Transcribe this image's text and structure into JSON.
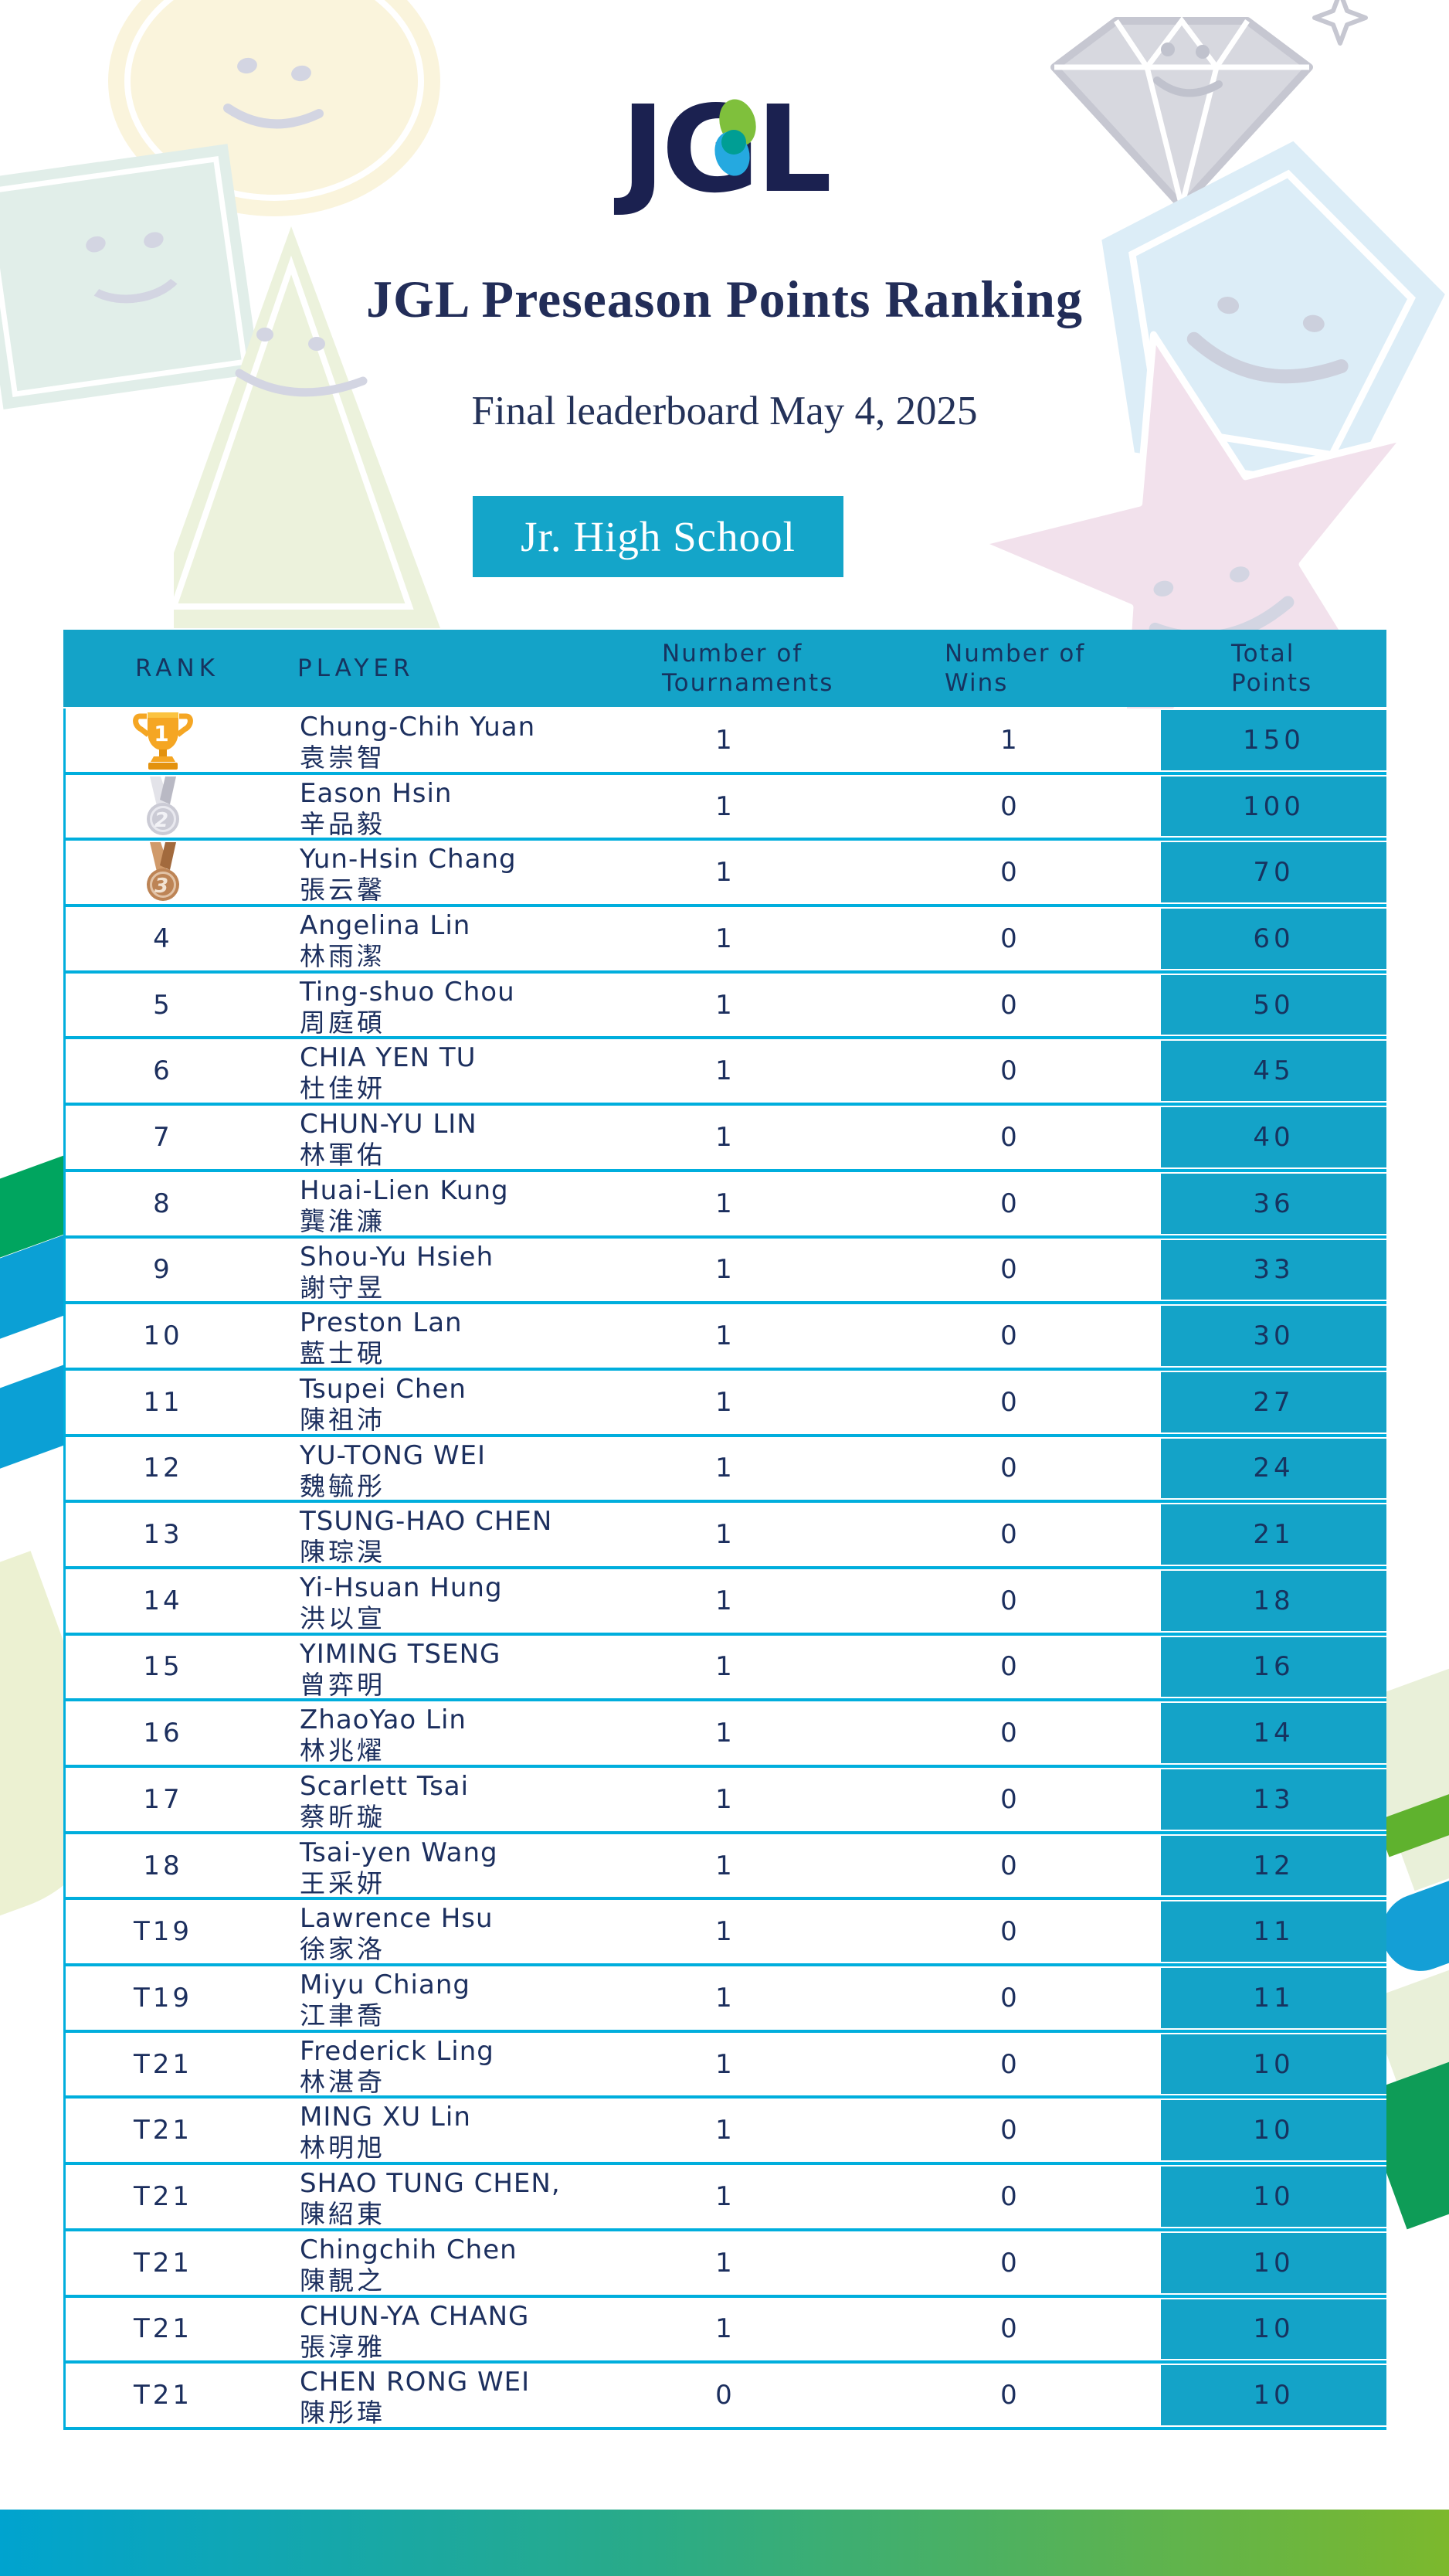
{
  "logo": {
    "text": "JGL"
  },
  "header": {
    "title": "JGL Preseason Points Ranking",
    "subtitle": "Final leaderboard May 4, 2025",
    "division_label": "Jr. High School"
  },
  "table": {
    "columns": [
      {
        "id": "rank",
        "lines": [
          "RANK"
        ]
      },
      {
        "id": "player",
        "lines": [
          "PLAYER"
        ]
      },
      {
        "id": "tournaments",
        "lines": [
          "Number of",
          "Tournaments"
        ]
      },
      {
        "id": "wins",
        "lines": [
          "Number of",
          "Wins"
        ]
      },
      {
        "id": "points",
        "lines": [
          "Total",
          "Points"
        ]
      }
    ],
    "rows": [
      {
        "rank": "1",
        "medal": "gold-trophy",
        "name_en": "Chung-Chih Yuan",
        "name_zh": "袁崇智",
        "tournaments": "1",
        "wins": "1",
        "points": "150"
      },
      {
        "rank": "2",
        "medal": "silver-medal",
        "name_en": "Eason Hsin",
        "name_zh": "辛品毅",
        "tournaments": "1",
        "wins": "0",
        "points": "100"
      },
      {
        "rank": "3",
        "medal": "bronze-medal",
        "name_en": "Yun-Hsin Chang",
        "name_zh": "張云馨",
        "tournaments": "1",
        "wins": "0",
        "points": "70"
      },
      {
        "rank": "4",
        "medal": null,
        "name_en": "Angelina Lin",
        "name_zh": "林雨潔",
        "tournaments": "1",
        "wins": "0",
        "points": "60"
      },
      {
        "rank": "5",
        "medal": null,
        "name_en": "Ting-shuo Chou",
        "name_zh": "周庭碩",
        "tournaments": "1",
        "wins": "0",
        "points": "50"
      },
      {
        "rank": "6",
        "medal": null,
        "name_en": "CHIA YEN TU",
        "name_zh": "杜佳妍",
        "tournaments": "1",
        "wins": "0",
        "points": "45"
      },
      {
        "rank": "7",
        "medal": null,
        "name_en": "CHUN-YU LIN",
        "name_zh": "林軍佑",
        "tournaments": "1",
        "wins": "0",
        "points": "40"
      },
      {
        "rank": "8",
        "medal": null,
        "name_en": "Huai-Lien Kung",
        "name_zh": "龔淮濂",
        "tournaments": "1",
        "wins": "0",
        "points": "36"
      },
      {
        "rank": "9",
        "medal": null,
        "name_en": "Shou-Yu Hsieh",
        "name_zh": "謝守昱",
        "tournaments": "1",
        "wins": "0",
        "points": "33"
      },
      {
        "rank": "10",
        "medal": null,
        "name_en": "Preston Lan",
        "name_zh": "藍士硯",
        "tournaments": "1",
        "wins": "0",
        "points": "30"
      },
      {
        "rank": "11",
        "medal": null,
        "name_en": "Tsupei Chen",
        "name_zh": "陳祖沛",
        "tournaments": "1",
        "wins": "0",
        "points": "27"
      },
      {
        "rank": "12",
        "medal": null,
        "name_en": "YU-TONG WEI",
        "name_zh": "魏毓彤",
        "tournaments": "1",
        "wins": "0",
        "points": "24"
      },
      {
        "rank": "13",
        "medal": null,
        "name_en": "TSUNG-HAO CHEN",
        "name_zh": "陳琮淏",
        "tournaments": "1",
        "wins": "0",
        "points": "21"
      },
      {
        "rank": "14",
        "medal": null,
        "name_en": "Yi-Hsuan Hung",
        "name_zh": "洪以宣",
        "tournaments": "1",
        "wins": "0",
        "points": "18"
      },
      {
        "rank": "15",
        "medal": null,
        "name_en": "YIMING TSENG",
        "name_zh": "曾弈明",
        "tournaments": "1",
        "wins": "0",
        "points": "16"
      },
      {
        "rank": "16",
        "medal": null,
        "name_en": "ZhaoYao Lin",
        "name_zh": "林兆燿",
        "tournaments": "1",
        "wins": "0",
        "points": "14"
      },
      {
        "rank": "17",
        "medal": null,
        "name_en": "Scarlett Tsai",
        "name_zh": "蔡昕璇",
        "tournaments": "1",
        "wins": "0",
        "points": "13"
      },
      {
        "rank": "18",
        "medal": null,
        "name_en": "Tsai-yen Wang",
        "name_zh": "王采妍",
        "tournaments": "1",
        "wins": "0",
        "points": "12"
      },
      {
        "rank": "T19",
        "medal": null,
        "name_en": "Lawrence Hsu",
        "name_zh": "徐家洛",
        "tournaments": "1",
        "wins": "0",
        "points": "11"
      },
      {
        "rank": "T19",
        "medal": null,
        "name_en": "Miyu Chiang",
        "name_zh": "江聿喬",
        "tournaments": "1",
        "wins": "0",
        "points": "11"
      },
      {
        "rank": "T21",
        "medal": null,
        "name_en": "Frederick Ling",
        "name_zh": "林湛奇",
        "tournaments": "1",
        "wins": "0",
        "points": "10"
      },
      {
        "rank": "T21",
        "medal": null,
        "name_en": "MING XU Lin",
        "name_zh": "林明旭",
        "tournaments": "1",
        "wins": "0",
        "points": "10"
      },
      {
        "rank": "T21",
        "medal": null,
        "name_en": "SHAO TUNG CHEN,",
        "name_zh": "陳紹東",
        "tournaments": "1",
        "wins": "0",
        "points": "10"
      },
      {
        "rank": "T21",
        "medal": null,
        "name_en": "Chingchih Chen",
        "name_zh": "陳靚之",
        "tournaments": "1",
        "wins": "0",
        "points": "10"
      },
      {
        "rank": "T21",
        "medal": null,
        "name_en": "CHUN-YA CHANG",
        "name_zh": "張淳雅",
        "tournaments": "1",
        "wins": "0",
        "points": "10"
      },
      {
        "rank": "T21",
        "medal": null,
        "name_en": "CHEN RONG WEI",
        "name_zh": "陳彤瑋",
        "tournaments": "0",
        "wins": "0",
        "points": "10"
      }
    ]
  },
  "colors": {
    "accent_teal": "#14a3c8",
    "separator_cyan": "#00aedd",
    "navy_text": "#1c2f5e",
    "title_navy": "#222d58",
    "banner_text": "#ffffff",
    "bottom_gradient_left": "#00a3cf",
    "bottom_gradient_right": "#7cb82d",
    "stripe_green": "#00a55f",
    "stripe_blue": "#0ba0d5",
    "stripe_light_green": "#5fb22e",
    "stripe_dark_green": "#0e9c57",
    "pale_band": "#ecf1d2",
    "gold": "#f5a623",
    "silver": "#cbcbd5",
    "bronze": "#bd8455",
    "logo_navy": "#1b2150",
    "logo_green": "#7fc03c",
    "logo_blue": "#25a9e0"
  }
}
